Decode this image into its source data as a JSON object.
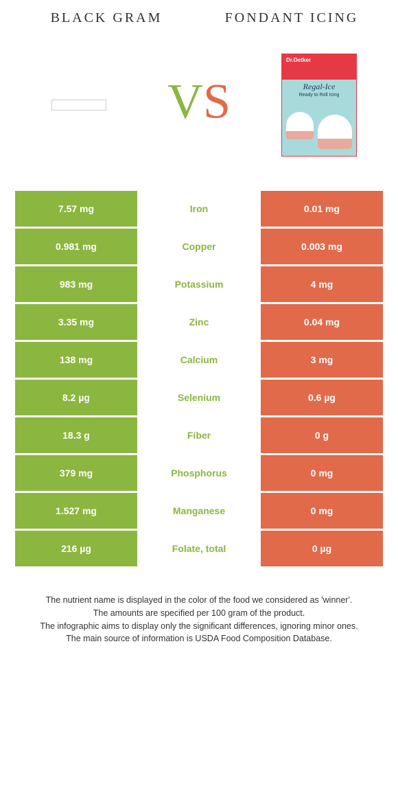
{
  "colors": {
    "left": "#8bb63f",
    "right": "#e06a4a",
    "row_bg": "#ffffff",
    "white_text": "#ffffff"
  },
  "header": {
    "left_title": "BLACK GRAM",
    "right_title": "FONDANT ICING"
  },
  "vs": {
    "v": "V",
    "s": "S"
  },
  "product": {
    "brand": "Dr.Oetker",
    "name": "Regal-Ice",
    "sub": "Ready to Roll Icing"
  },
  "nutrients": [
    {
      "name": "Iron",
      "left": "7.57 mg",
      "right": "0.01 mg",
      "winner": "left"
    },
    {
      "name": "Copper",
      "left": "0.981 mg",
      "right": "0.003 mg",
      "winner": "left"
    },
    {
      "name": "Potassium",
      "left": "983 mg",
      "right": "4 mg",
      "winner": "left"
    },
    {
      "name": "Zinc",
      "left": "3.35 mg",
      "right": "0.04 mg",
      "winner": "left"
    },
    {
      "name": "Calcium",
      "left": "138 mg",
      "right": "3 mg",
      "winner": "left"
    },
    {
      "name": "Selenium",
      "left": "8.2 µg",
      "right": "0.6 µg",
      "winner": "left"
    },
    {
      "name": "Fiber",
      "left": "18.3 g",
      "right": "0 g",
      "winner": "left"
    },
    {
      "name": "Phosphorus",
      "left": "379 mg",
      "right": "0 mg",
      "winner": "left"
    },
    {
      "name": "Manganese",
      "left": "1.527 mg",
      "right": "0 mg",
      "winner": "left"
    },
    {
      "name": "Folate, total",
      "left": "216 µg",
      "right": "0 µg",
      "winner": "left"
    }
  ],
  "footer": {
    "l1": "The nutrient name is displayed in the color of the food we considered as 'winner'.",
    "l2": "The amounts are specified per 100 gram of the product.",
    "l3": "The infographic aims to display only the significant differences, ignoring minor ones.",
    "l4": "The main source of information is USDA Food Composition Database."
  }
}
